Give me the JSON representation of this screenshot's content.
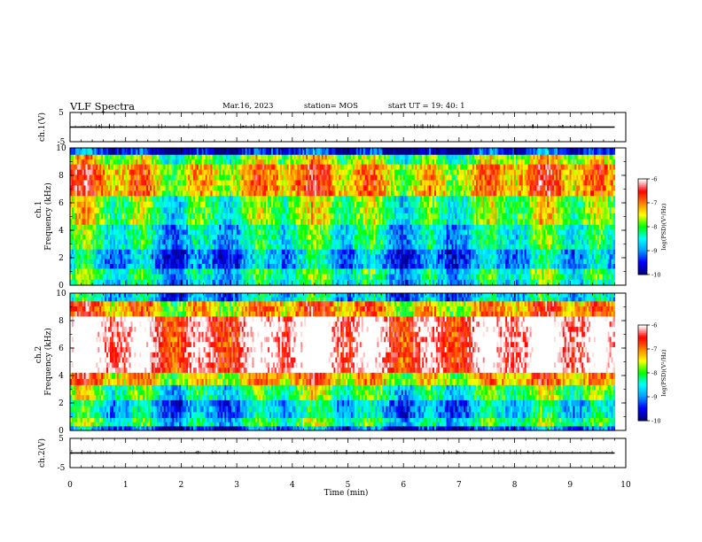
{
  "header": {
    "title": "VLF Spectra",
    "date": "Mar.16, 2023",
    "station": "station= MOS",
    "start": "start  UT =   19: 40: 1"
  },
  "colors": {
    "axis": "#000000",
    "colormap": [
      "#000080",
      "#0000ff",
      "#00a0ff",
      "#00ffff",
      "#00ff00",
      "#ffff00",
      "#ff8000",
      "#ff0000",
      "#ffffff"
    ]
  },
  "chart_data": [
    {
      "type": "line",
      "ylabel": "ch.1(V)",
      "ylim": [
        -5,
        5
      ],
      "yticks": [
        "5",
        "-5"
      ],
      "xlim": [
        0,
        10
      ],
      "series": [
        {
          "x": [
            0,
            9.8
          ],
          "y": [
            0,
            0
          ]
        }
      ]
    },
    {
      "type": "heatmap",
      "ylabel_line1": "ch.1",
      "ylabel_line2": "Frequency (kHz)",
      "ylim": [
        0,
        10
      ],
      "yticks": [
        "0",
        "2",
        "4",
        "6",
        "8",
        "10"
      ],
      "xlim": [
        0,
        10
      ],
      "data_xmax": 9.8,
      "colorbar": {
        "label": "log(PSD)(V²/Hz)",
        "range": [
          -10,
          -6
        ],
        "ticks": [
          "-6",
          "-7",
          "-8",
          "-9",
          "-10"
        ]
      },
      "band_levels": [
        {
          "f_from": 9.5,
          "f_to": 10,
          "level": -9.6
        },
        {
          "f_from": 8.8,
          "f_to": 9.5,
          "level": -7.8
        },
        {
          "f_from": 6.5,
          "f_to": 8.8,
          "level": -7.2
        },
        {
          "f_from": 4.4,
          "f_to": 6.5,
          "level": -8.0
        },
        {
          "f_from": 2.6,
          "f_to": 4.4,
          "level": -8.5
        },
        {
          "f_from": 1.2,
          "f_to": 2.6,
          "level": -9.0
        },
        {
          "f_from": 0.4,
          "f_to": 1.2,
          "level": -8.4
        },
        {
          "f_from": 0,
          "f_to": 0.4,
          "level": -8.6
        }
      ]
    },
    {
      "type": "heatmap",
      "ylabel_line1": "ch.2",
      "ylabel_line2": "Frequency (kHz)",
      "ylim": [
        0,
        10
      ],
      "yticks": [
        "0",
        "2",
        "4",
        "6",
        "8",
        "10"
      ],
      "xlim": [
        0,
        10
      ],
      "data_xmax": 9.8,
      "colorbar": {
        "label": "log(PSD)(V²/Hz)",
        "range": [
          -10,
          -6
        ],
        "ticks": [
          "-6",
          "-7",
          "-8",
          "-9",
          "-10"
        ]
      },
      "band_levels": [
        {
          "f_from": 9.4,
          "f_to": 10,
          "level": -8.8
        },
        {
          "f_from": 8.3,
          "f_to": 9.4,
          "level": -7.2
        },
        {
          "f_from": 4.2,
          "f_to": 8.3,
          "level": -6.1
        },
        {
          "f_from": 3.3,
          "f_to": 4.2,
          "level": -7.3
        },
        {
          "f_from": 2.2,
          "f_to": 3.3,
          "level": -8.2
        },
        {
          "f_from": 0.9,
          "f_to": 2.2,
          "level": -8.8
        },
        {
          "f_from": 0.3,
          "f_to": 0.9,
          "level": -8.3
        },
        {
          "f_from": 0,
          "f_to": 0.3,
          "level": -9.3
        }
      ]
    },
    {
      "type": "line",
      "ylabel": "ch.2(V)",
      "ylim": [
        -5,
        5
      ],
      "yticks": [
        "5",
        "-5"
      ],
      "xlim": [
        0,
        10
      ],
      "xlabel": "Time (min)",
      "xticks": [
        "0",
        "1",
        "2",
        "3",
        "4",
        "5",
        "6",
        "7",
        "8",
        "9",
        "10"
      ],
      "series": [
        {
          "x": [
            0,
            9.8
          ],
          "y": [
            0,
            0
          ]
        }
      ]
    }
  ]
}
